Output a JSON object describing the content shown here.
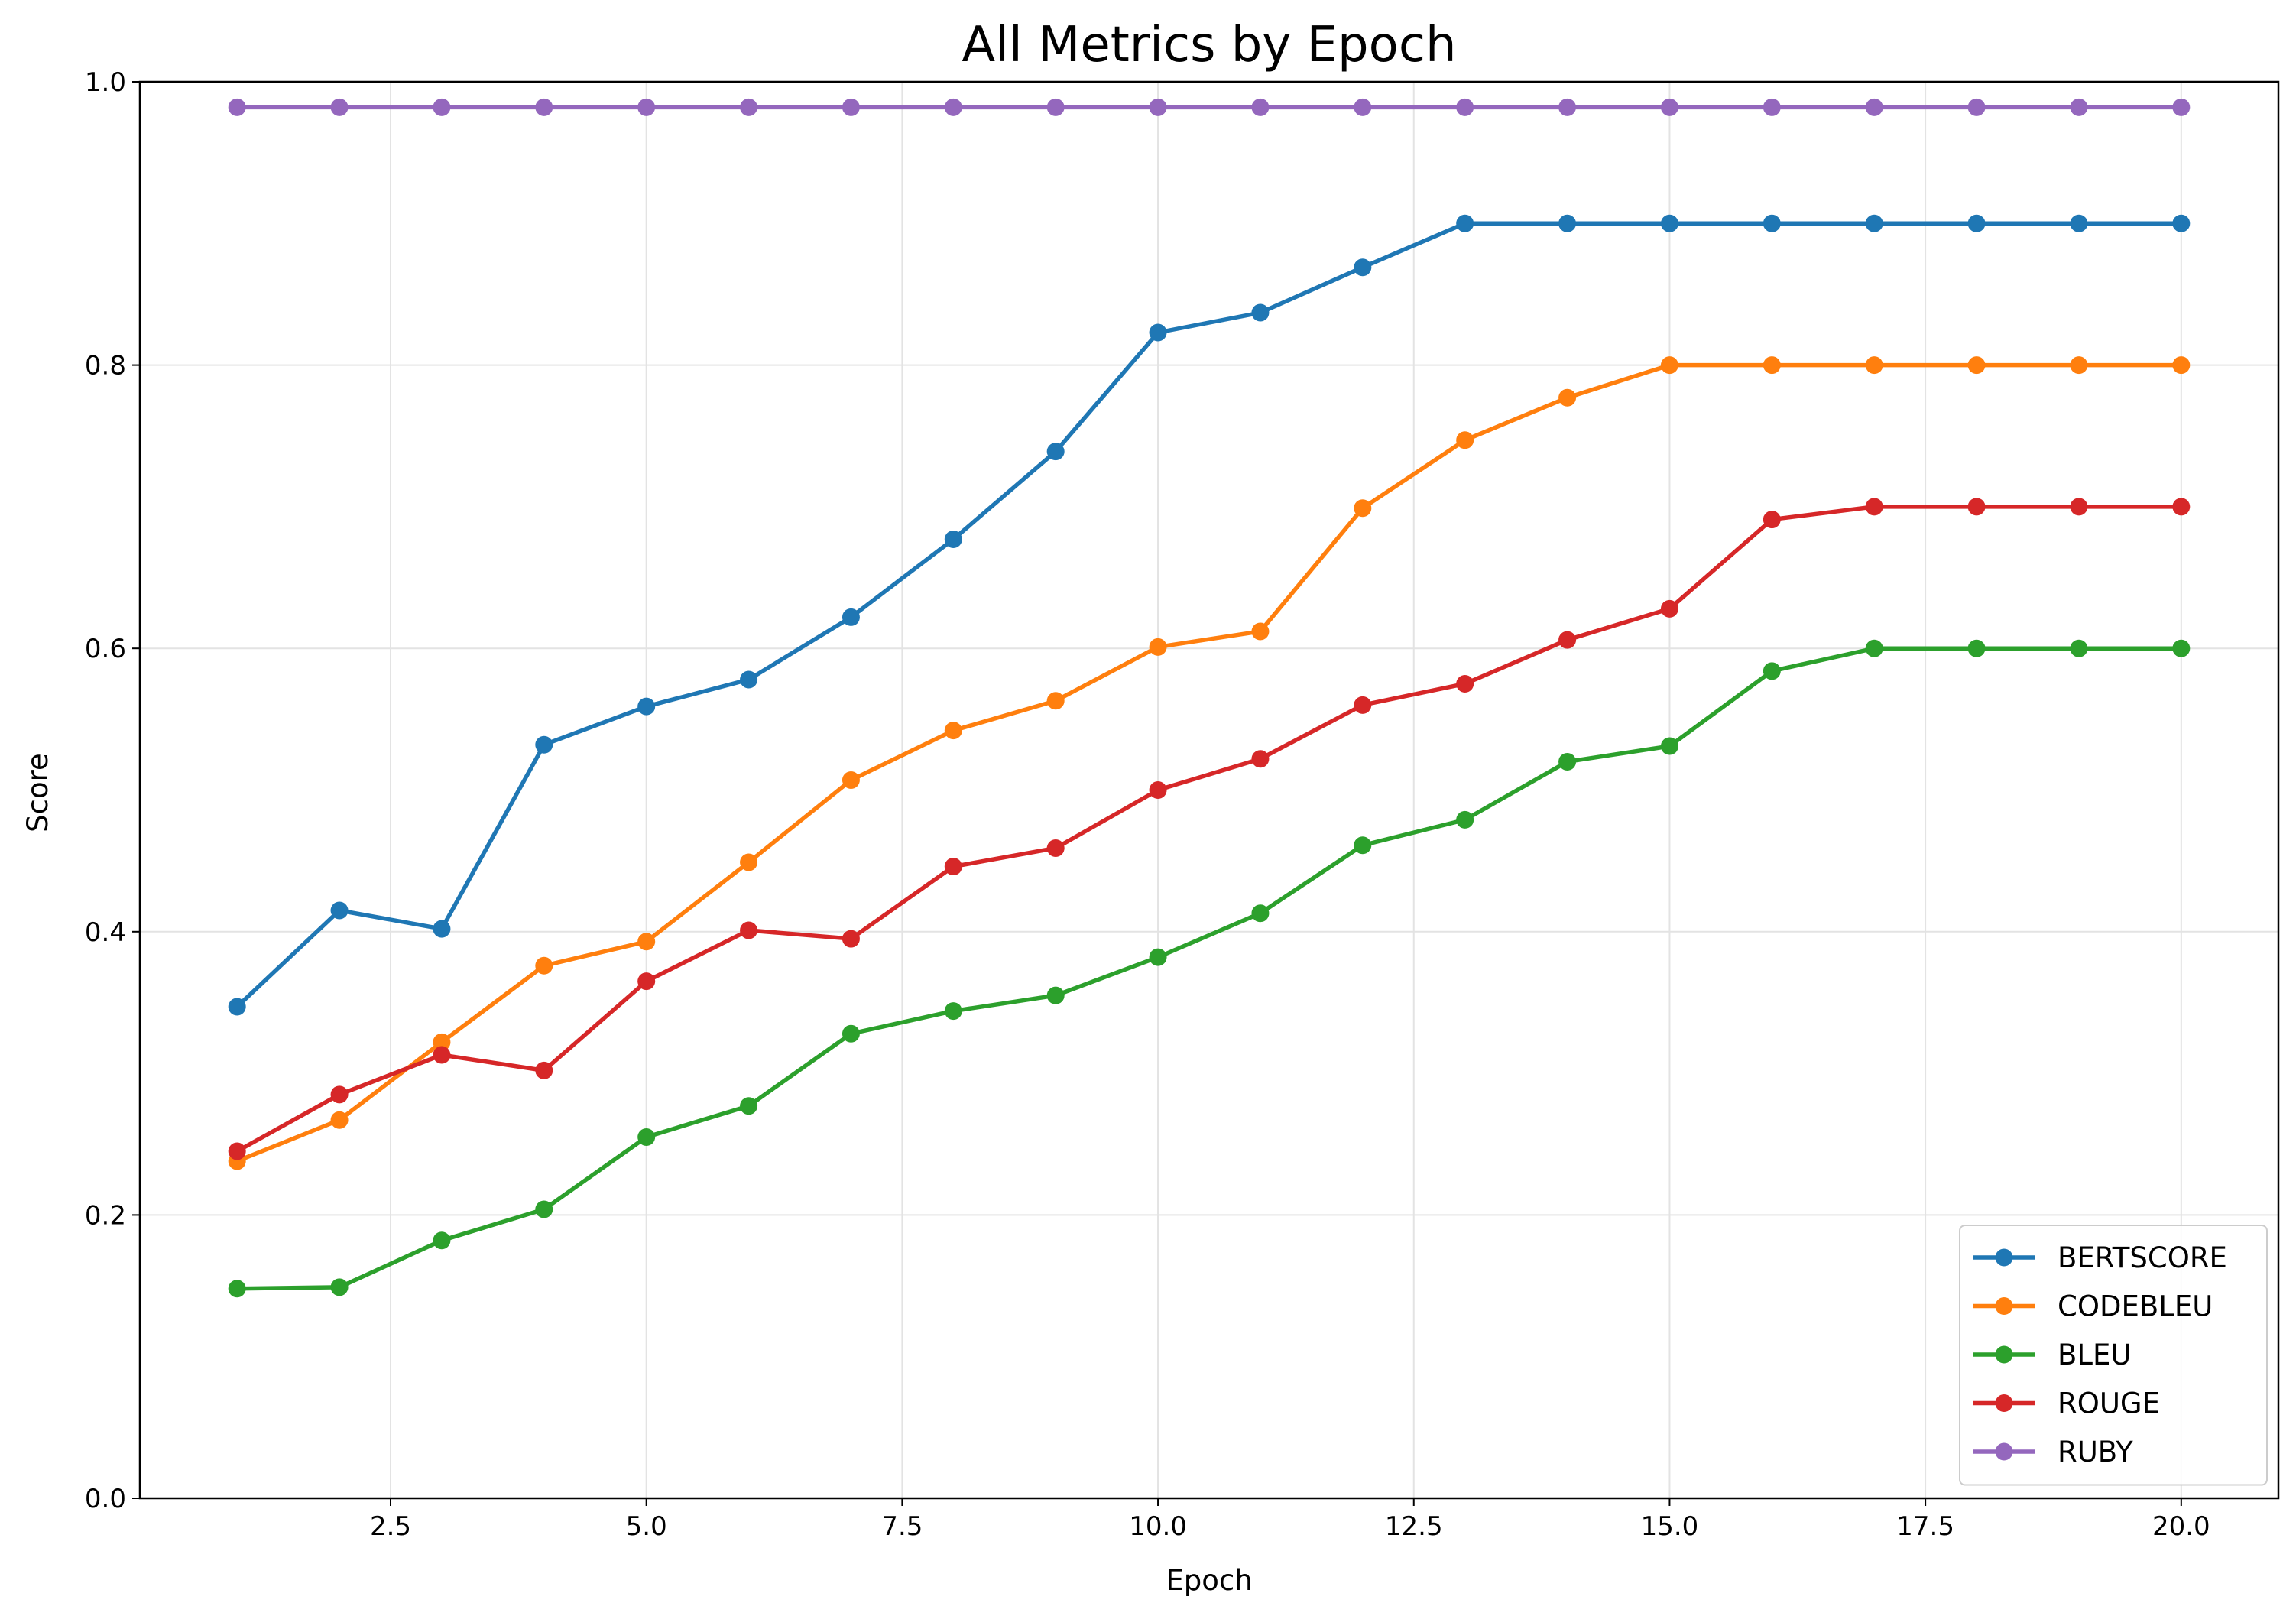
{
  "chart_data": {
    "type": "line",
    "title": "All Metrics by Epoch",
    "xlabel": "Epoch",
    "ylabel": "Score",
    "xlim": [
      0.05,
      20.95
    ],
    "ylim": [
      0.0,
      1.0
    ],
    "xticks": [
      2.5,
      5.0,
      7.5,
      10.0,
      12.5,
      15.0,
      17.5,
      20.0
    ],
    "xtick_labels": [
      "2.5",
      "5.0",
      "7.5",
      "10.0",
      "12.5",
      "15.0",
      "17.5",
      "20.0"
    ],
    "yticks": [
      0.0,
      0.2,
      0.4,
      0.6,
      0.8,
      1.0
    ],
    "ytick_labels": [
      "0.0",
      "0.2",
      "0.4",
      "0.6",
      "0.8",
      "1.0"
    ],
    "grid": true,
    "legend_position": "lower-right",
    "x": [
      1,
      2,
      3,
      4,
      5,
      6,
      7,
      8,
      9,
      10,
      11,
      12,
      13,
      14,
      15,
      16,
      17,
      18,
      19,
      20
    ],
    "series": [
      {
        "name": "BERTSCORE",
        "color": "#1f77b4",
        "values": [
          0.347,
          0.415,
          0.402,
          0.532,
          0.559,
          0.578,
          0.622,
          0.677,
          0.739,
          0.823,
          0.837,
          0.869,
          0.9,
          0.9,
          0.9,
          0.9,
          0.9,
          0.9,
          0.9,
          0.9
        ]
      },
      {
        "name": "CODEBLEU",
        "color": "#ff7f0e",
        "values": [
          0.238,
          0.267,
          0.322,
          0.376,
          0.393,
          0.449,
          0.507,
          0.542,
          0.563,
          0.601,
          0.612,
          0.699,
          0.747,
          0.777,
          0.8,
          0.8,
          0.8,
          0.8,
          0.8,
          0.8
        ]
      },
      {
        "name": "BLEU",
        "color": "#2ca02c",
        "values": [
          0.148,
          0.149,
          0.182,
          0.204,
          0.255,
          0.277,
          0.328,
          0.344,
          0.355,
          0.382,
          0.413,
          0.461,
          0.479,
          0.52,
          0.531,
          0.584,
          0.6,
          0.6,
          0.6,
          0.6
        ]
      },
      {
        "name": "ROUGE",
        "color": "#d62728",
        "values": [
          0.245,
          0.285,
          0.313,
          0.302,
          0.365,
          0.401,
          0.395,
          0.446,
          0.459,
          0.5,
          0.522,
          0.56,
          0.575,
          0.606,
          0.628,
          0.691,
          0.7,
          0.7,
          0.7,
          0.7
        ]
      },
      {
        "name": "RUBY",
        "color": "#9467bd",
        "values": [
          0.982,
          0.982,
          0.982,
          0.982,
          0.982,
          0.982,
          0.982,
          0.982,
          0.982,
          0.982,
          0.982,
          0.982,
          0.982,
          0.982,
          0.982,
          0.982,
          0.982,
          0.982,
          0.982,
          0.982
        ]
      }
    ]
  }
}
